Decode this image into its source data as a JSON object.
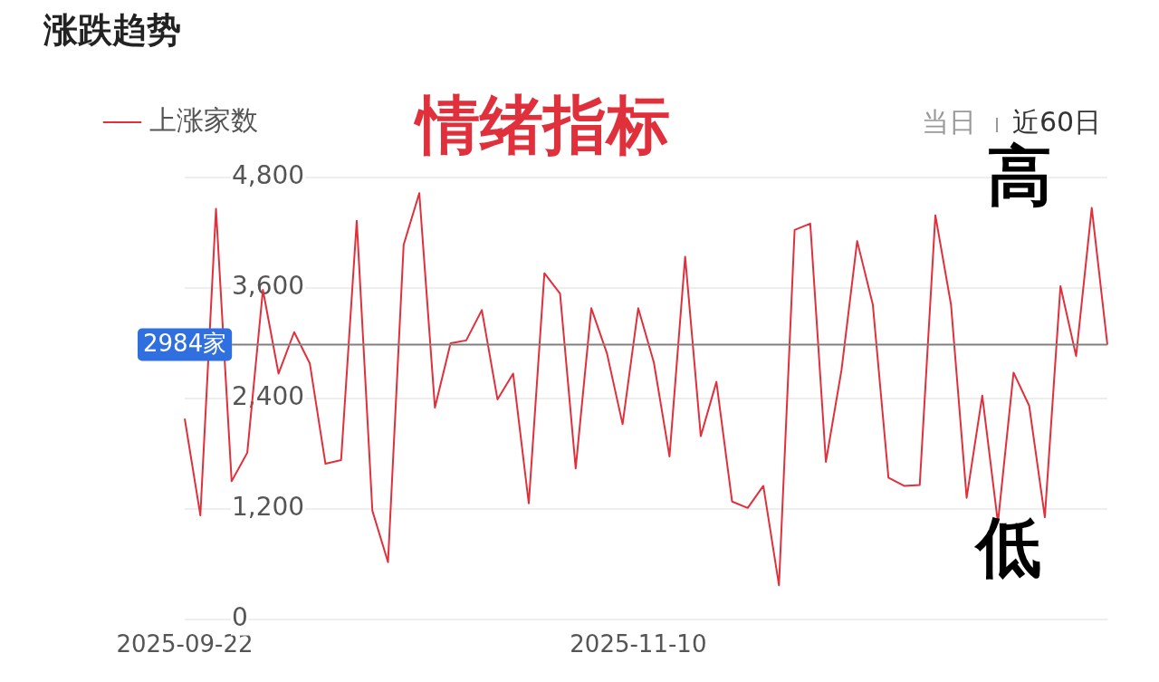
{
  "chart_data": {
    "type": "line",
    "title": "涨跌趋势",
    "categories": [
      "2025-09-22",
      null,
      null,
      null,
      null,
      null,
      null,
      null,
      null,
      null,
      null,
      null,
      null,
      null,
      null,
      null,
      null,
      null,
      null,
      null,
      null,
      null,
      null,
      null,
      null,
      null,
      null,
      null,
      null,
      "2025-11-10",
      null,
      null,
      null,
      null,
      null,
      null,
      null,
      null,
      null,
      null,
      null,
      null,
      null,
      null,
      null,
      null,
      null,
      null,
      null,
      null,
      null,
      null,
      null,
      null,
      null,
      null,
      null,
      null,
      null,
      null
    ],
    "series": [
      {
        "name": "上涨家数",
        "color": "#e0303c",
        "values": [
          2180,
          1130,
          4460,
          1500,
          1810,
          3580,
          2670,
          3120,
          2780,
          1690,
          1730,
          4330,
          1180,
          620,
          4070,
          4630,
          2300,
          3000,
          3030,
          3360,
          2390,
          2670,
          1260,
          3760,
          3540,
          1640,
          3380,
          2890,
          2120,
          3380,
          2790,
          1770,
          3940,
          1990,
          2580,
          1280,
          1210,
          1450,
          370,
          4230,
          4300,
          1710,
          2710,
          4110,
          3420,
          1540,
          1450,
          1460,
          4390,
          3420,
          1320,
          2430,
          1050,
          2680,
          2320,
          1110,
          3620,
          2860,
          4470,
          2984
        ]
      }
    ],
    "ylim": [
      0,
      4800
    ],
    "yticks": [
      {
        "value": 0,
        "label": "0"
      },
      {
        "value": 1200,
        "label": "1,200"
      },
      {
        "value": 2400,
        "label": "2,400"
      },
      {
        "value": 3600,
        "label": "3,600"
      },
      {
        "value": 4800,
        "label": "4,800"
      }
    ],
    "grid": "y",
    "legend": "top left",
    "line_style": "solid",
    "ref_lines": [
      {
        "axis": "y",
        "value": 2984,
        "label": "2984家",
        "color": "#808080"
      }
    ],
    "annotations": [
      "情绪指标",
      "当日",
      "近60日",
      "高",
      "低"
    ]
  }
}
